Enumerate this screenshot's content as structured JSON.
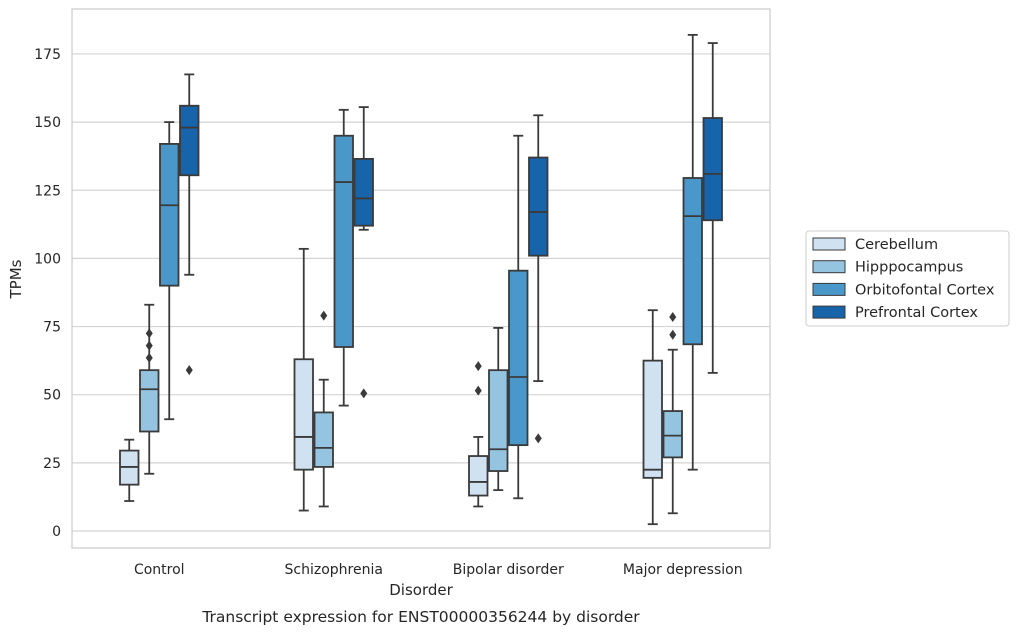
{
  "chart_data": {
    "type": "boxplot",
    "caption": "Transcript expression for ENST00000356244 by disorder",
    "xlabel": "Disorder",
    "ylabel": "TPMs",
    "ylim": [
      -6,
      191
    ],
    "yticks": [
      0,
      25,
      50,
      75,
      100,
      125,
      150,
      175
    ],
    "grid": "horizontal",
    "legend_position": "right",
    "categories": [
      "Control",
      "Schizophrenia",
      "Bipolar disorder",
      "Major depression"
    ],
    "series": [
      {
        "name": "Cerebellum",
        "color": "#d0e1f2",
        "boxes": [
          {
            "whisker_low": 11,
            "q1": 17,
            "median": 23.5,
            "q3": 29.5,
            "whisker_high": 33.5,
            "outliers": []
          },
          {
            "whisker_low": 7.5,
            "q1": 22.5,
            "median": 34.5,
            "q3": 63,
            "whisker_high": 103.5,
            "outliers": []
          },
          {
            "whisker_low": 9,
            "q1": 13,
            "median": 18,
            "q3": 27.5,
            "whisker_high": 34.5,
            "outliers": [
              51.5,
              60.5
            ]
          },
          {
            "whisker_low": 2.5,
            "q1": 19.5,
            "median": 22.5,
            "q3": 62.5,
            "whisker_high": 81,
            "outliers": []
          }
        ]
      },
      {
        "name": "Hipppocampus",
        "color": "#94c4df",
        "boxes": [
          {
            "whisker_low": 21,
            "q1": 36.5,
            "median": 52,
            "q3": 59,
            "whisker_high": 83,
            "outliers": [
              63.5,
              68,
              72.5
            ]
          },
          {
            "whisker_low": 9,
            "q1": 23.5,
            "median": 30.5,
            "q3": 43.5,
            "whisker_high": 55.5,
            "outliers": [
              79
            ]
          },
          {
            "whisker_low": 15,
            "q1": 22,
            "median": 30,
            "q3": 59,
            "whisker_high": 74.5,
            "outliers": []
          },
          {
            "whisker_low": 6.5,
            "q1": 27,
            "median": 35,
            "q3": 44,
            "whisker_high": 66.5,
            "outliers": [
              72,
              78.5
            ]
          }
        ]
      },
      {
        "name": "Orbitofontal Cortex",
        "color": "#4a98c9",
        "boxes": [
          {
            "whisker_low": 41,
            "q1": 90,
            "median": 119.5,
            "q3": 142,
            "whisker_high": 150,
            "outliers": []
          },
          {
            "whisker_low": 46,
            "q1": 67.5,
            "median": 128,
            "q3": 145,
            "whisker_high": 154.5,
            "outliers": []
          },
          {
            "whisker_low": 12,
            "q1": 31.5,
            "median": 56.5,
            "q3": 95.5,
            "whisker_high": 145,
            "outliers": []
          },
          {
            "whisker_low": 22.5,
            "q1": 68.5,
            "median": 115.5,
            "q3": 129.5,
            "whisker_high": 182,
            "outliers": []
          }
        ]
      },
      {
        "name": "Prefrontal Cortex",
        "color": "#1764ab",
        "boxes": [
          {
            "whisker_low": 94,
            "q1": 130.5,
            "median": 148,
            "q3": 156,
            "whisker_high": 167.5,
            "outliers": [
              59
            ]
          },
          {
            "whisker_low": 110.5,
            "q1": 112,
            "median": 122,
            "q3": 136.5,
            "whisker_high": 155.5,
            "outliers": [
              50.5
            ]
          },
          {
            "whisker_low": 55,
            "q1": 101,
            "median": 117,
            "q3": 137,
            "whisker_high": 152.5,
            "outliers": [
              34
            ]
          },
          {
            "whisker_low": 58,
            "q1": 114,
            "median": 131,
            "q3": 151.5,
            "whisker_high": 179,
            "outliers": []
          }
        ]
      }
    ]
  }
}
